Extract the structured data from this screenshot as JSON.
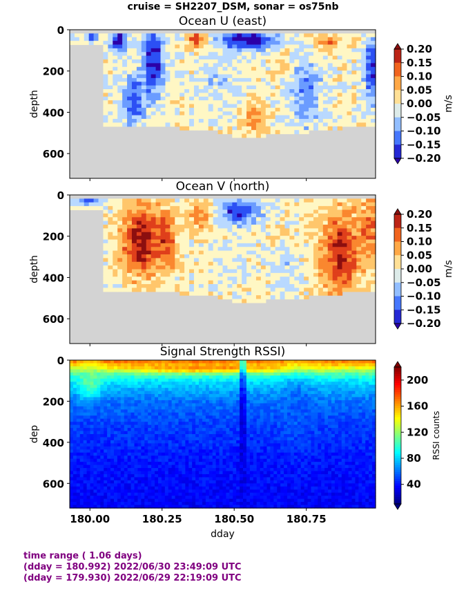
{
  "figure": {
    "suptitle": "cruise = SH2207_DSM,  sonar = os75nb",
    "xlabel": "dday",
    "footer": [
      "time range ( 1.06 days)",
      "(dday = 180.992) 2022/06/30 23:49:09 UTC",
      "(dday = 179.930) 2022/06/29 22:19:09 UTC"
    ]
  },
  "colors": {
    "footer_text": "#800080",
    "no_data": "#d3d3d3",
    "velocity_cmap": [
      "#2c00a8",
      "#2140f0",
      "#4b7fff",
      "#8ab9ff",
      "#c8e4ff",
      "#fff7c4",
      "#ffd27a",
      "#ffa23e",
      "#f46b1f",
      "#d8301a",
      "#8c0f0f"
    ],
    "rssi_cmap": [
      "#00007f",
      "#0000ff",
      "#007fff",
      "#00ffff",
      "#7fff7f",
      "#ffff00",
      "#ff7f00",
      "#ff0000",
      "#7f0000"
    ]
  },
  "chart_data": [
    {
      "type": "heatmap",
      "title": "Ocean U (east)",
      "ylabel": "depth",
      "xlim": [
        179.93,
        180.99
      ],
      "ylim": [
        720,
        0
      ],
      "yticks": [
        0,
        200,
        400,
        600
      ],
      "colorbar": {
        "label": "m/s",
        "ticks": [
          "0.20",
          "0.15",
          "0.10",
          "0.05",
          "0.00",
          "−0.05",
          "−0.10",
          "−0.15",
          "−0.20"
        ],
        "range": [
          -0.2,
          0.2
        ]
      },
      "bottom_depth": [
        [
          179.93,
          65
        ],
        [
          180.04,
          65
        ],
        [
          180.05,
          460
        ],
        [
          180.09,
          470
        ],
        [
          180.4,
          480
        ],
        [
          180.49,
          515
        ],
        [
          180.56,
          520
        ],
        [
          180.62,
          510
        ],
        [
          180.75,
          495
        ],
        [
          180.84,
          490
        ],
        [
          180.92,
          460
        ],
        [
          180.99,
          460
        ]
      ],
      "data_top_depth": 15,
      "features": [
        {
          "day": 180.1,
          "depth": 60,
          "value": -0.2,
          "sx": 0.03,
          "sy": 60
        },
        {
          "day": 180.22,
          "depth": 150,
          "value": -0.2,
          "sx": 0.04,
          "sy": 170
        },
        {
          "day": 180.15,
          "depth": 350,
          "value": -0.15,
          "sx": 0.04,
          "sy": 120
        },
        {
          "day": 180.55,
          "depth": 50,
          "value": -0.22,
          "sx": 0.09,
          "sy": 50
        },
        {
          "day": 180.37,
          "depth": 45,
          "value": 0.15,
          "sx": 0.03,
          "sy": 40
        },
        {
          "day": 180.45,
          "depth": 250,
          "value": -0.05,
          "sx": 0.08,
          "sy": 150
        },
        {
          "day": 180.57,
          "depth": 420,
          "value": 0.08,
          "sx": 0.04,
          "sy": 90
        },
        {
          "day": 180.82,
          "depth": 60,
          "value": 0.12,
          "sx": 0.04,
          "sy": 40
        },
        {
          "day": 180.98,
          "depth": 200,
          "value": -0.18,
          "sx": 0.03,
          "sy": 150
        },
        {
          "day": 180.75,
          "depth": 300,
          "value": -0.1,
          "sx": 0.06,
          "sy": 180
        },
        {
          "day": 180.01,
          "depth": 40,
          "value": -0.18,
          "sx": 0.02,
          "sy": 25
        },
        {
          "day": 180.67,
          "depth": 150,
          "value": 0.05,
          "sx": 0.02,
          "sy": 80
        }
      ]
    },
    {
      "type": "heatmap",
      "title": "Ocean V (north)",
      "ylabel": "depth",
      "xlim": [
        179.93,
        180.99
      ],
      "ylim": [
        720,
        0
      ],
      "yticks": [
        0,
        200,
        400,
        600
      ],
      "colorbar": {
        "label": "m/s",
        "ticks": [
          "0.20",
          "0.15",
          "0.10",
          "0.05",
          "0.00",
          "−0.05",
          "−0.10",
          "−0.15",
          "−0.20"
        ],
        "range": [
          -0.2,
          0.2
        ]
      },
      "bottom_depth": [
        [
          179.93,
          65
        ],
        [
          180.04,
          65
        ],
        [
          180.05,
          460
        ],
        [
          180.09,
          470
        ],
        [
          180.4,
          480
        ],
        [
          180.49,
          515
        ],
        [
          180.56,
          520
        ],
        [
          180.62,
          510
        ],
        [
          180.75,
          495
        ],
        [
          180.84,
          490
        ],
        [
          180.92,
          460
        ],
        [
          180.99,
          460
        ]
      ],
      "data_top_depth": 15,
      "features": [
        {
          "day": 180.18,
          "depth": 220,
          "value": 0.2,
          "sx": 0.07,
          "sy": 170
        },
        {
          "day": 180.27,
          "depth": 220,
          "value": 0.12,
          "sx": 0.03,
          "sy": 130
        },
        {
          "day": 180.38,
          "depth": 100,
          "value": 0.1,
          "sx": 0.04,
          "sy": 80
        },
        {
          "day": 180.52,
          "depth": 80,
          "value": -0.18,
          "sx": 0.07,
          "sy": 60
        },
        {
          "day": 180.5,
          "depth": 320,
          "value": -0.02,
          "sx": 0.08,
          "sy": 150
        },
        {
          "day": 180.87,
          "depth": 280,
          "value": 0.18,
          "sx": 0.07,
          "sy": 200
        },
        {
          "day": 180.97,
          "depth": 150,
          "value": 0.12,
          "sx": 0.03,
          "sy": 120
        },
        {
          "day": 180.0,
          "depth": 30,
          "value": -0.15,
          "sx": 0.05,
          "sy": 20
        },
        {
          "day": 180.68,
          "depth": 380,
          "value": -0.05,
          "sx": 0.04,
          "sy": 120
        }
      ]
    },
    {
      "type": "heatmap",
      "title": "Signal Strength RSSI)",
      "ylabel": "dep",
      "xlabel": "dday",
      "xlim": [
        179.93,
        180.99
      ],
      "ylim": [
        720,
        0
      ],
      "yticks": [
        0,
        200,
        400,
        600
      ],
      "xticks": [
        180.0,
        180.25,
        180.5,
        180.75
      ],
      "xticklabels": [
        "180.00",
        "180.25",
        "180.50",
        "180.75"
      ],
      "colorbar": {
        "label": "RSSI counts",
        "ticks": [
          "200",
          "160",
          "120",
          "80",
          "40"
        ],
        "range": [
          10,
          220
        ]
      },
      "profile": [
        [
          0,
          175
        ],
        [
          25,
          150
        ],
        [
          60,
          110
        ],
        [
          100,
          85
        ],
        [
          150,
          70
        ],
        [
          200,
          60
        ],
        [
          300,
          50
        ],
        [
          500,
          40
        ],
        [
          720,
          35
        ]
      ],
      "features": [
        {
          "day": 180.0,
          "depth": 100,
          "value": 110,
          "sx": 0.04,
          "sy": 80
        },
        {
          "day": 180.4,
          "depth": 40,
          "value": 165,
          "sx": 0.3,
          "sy": 20
        },
        {
          "day": 180.53,
          "depth": 300,
          "value": 25,
          "sx": 0.01,
          "sy": 400
        },
        {
          "day": 180.72,
          "depth": 250,
          "value": 55,
          "sx": 0.05,
          "sy": 150
        }
      ]
    }
  ]
}
